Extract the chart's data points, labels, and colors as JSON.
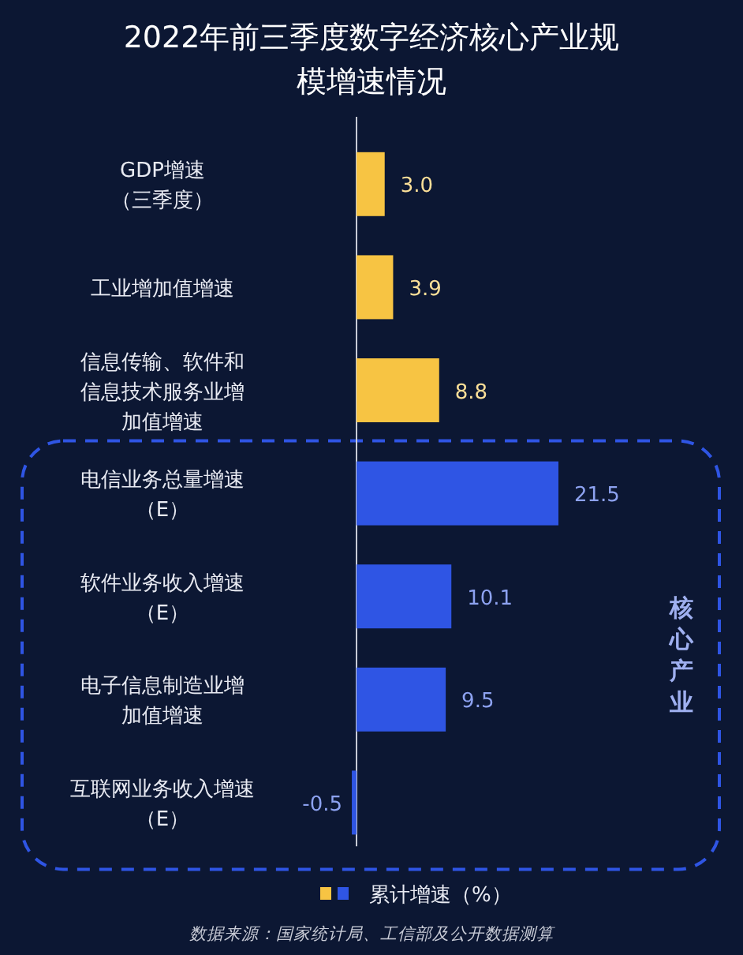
{
  "chart_data": {
    "type": "bar",
    "orientation": "horizontal",
    "title": "2022年前三季度数字经济核心产业规模增速情况",
    "categories": [
      "GDP增速（三季度）",
      "工业增加值增速",
      "信息传输、软件和信息技术服务业增加值增速",
      "电信业务总量增速（E）",
      "软件业务收入增速（E）",
      "电子信息制造业增加值增速",
      "互联网业务收入增速（E）"
    ],
    "series": [
      {
        "name": "累计增速（%）",
        "values": [
          3.0,
          3.9,
          8.8,
          21.5,
          10.1,
          9.5,
          -0.5
        ],
        "colors": [
          "#f7c443",
          "#f7c443",
          "#f7c443",
          "#2f55e4",
          "#2f55e4",
          "#2f55e4",
          "#2f55e4"
        ],
        "value_labels": [
          "3.0",
          "3.9",
          "8.8",
          "21.5",
          "10.1",
          "9.5",
          "-0.5"
        ]
      }
    ],
    "legend": "bottom",
    "annotations": [
      "核心产业",
      "数据来源：国家统计局、工信部及公开数据测算"
    ]
  }
}
